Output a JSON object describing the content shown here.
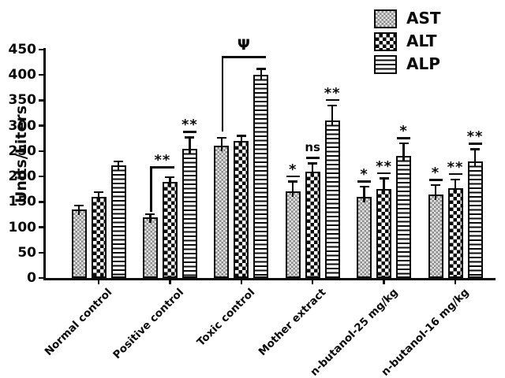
{
  "chart_data": {
    "type": "bar",
    "title": "",
    "ylabel": "Units/Liters",
    "ylim": [
      0,
      450
    ],
    "ytick_step": 50,
    "grid": false,
    "legend_position": "top-right",
    "categories": [
      "Normal control",
      "Positive control",
      "Toxic control",
      "Mother extract",
      "n-butanol-25 mg/kg",
      "n-butanol-16 mg/kg"
    ],
    "series": [
      {
        "name": "AST",
        "pattern": "fine-checker-gray",
        "values": [
          135,
          120,
          260,
          170,
          160,
          165
        ],
        "errors": [
          8,
          6,
          16,
          20,
          20,
          18
        ],
        "sig": [
          "",
          "",
          "",
          "*",
          "*",
          "*"
        ]
      },
      {
        "name": "ALT",
        "pattern": "bold-checkerboard",
        "values": [
          160,
          190,
          270,
          210,
          175,
          177
        ],
        "errors": [
          9,
          9,
          10,
          16,
          21,
          17
        ],
        "sig": [
          "",
          "",
          "",
          "ns",
          "**",
          "**"
        ]
      },
      {
        "name": "ALP",
        "pattern": "horizontal-stripes",
        "values": [
          222,
          255,
          400,
          310,
          240,
          230
        ],
        "errors": [
          8,
          22,
          12,
          30,
          25,
          24
        ],
        "sig": [
          "",
          "**",
          "",
          "**",
          "*",
          "**"
        ]
      }
    ],
    "brackets": [
      {
        "group_index": 1,
        "from_series": 0,
        "to_series": 1,
        "y": 220,
        "drop_to": 130,
        "label": "**"
      },
      {
        "group_index": 2,
        "from_series": 0,
        "to_series": 2,
        "y": 437,
        "drop_to": 289,
        "label": "Ψ"
      }
    ]
  },
  "colors": {
    "ink": "#0a0a0a",
    "background": "#ffffff",
    "ast_dark": "#8c8c8c",
    "ast_light": "#e2e2e2"
  }
}
